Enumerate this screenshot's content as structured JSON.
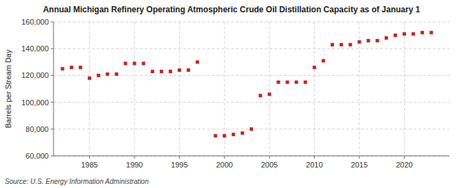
{
  "chart_data": {
    "type": "scatter",
    "title": "Annual Michigan Refinery Operating Atmospheric Crude Oil Distillation Capacity as of January 1",
    "y_label": "Barrels per Stream Day",
    "source": "Source: U.S. Energy Information Administration",
    "x": [
      1982,
      1983,
      1984,
      1985,
      1986,
      1987,
      1988,
      1989,
      1990,
      1991,
      1992,
      1993,
      1994,
      1995,
      1996,
      1997,
      1999,
      2000,
      2001,
      2002,
      2003,
      2004,
      2005,
      2006,
      2007,
      2008,
      2009,
      2010,
      2011,
      2012,
      2013,
      2014,
      2015,
      2016,
      2017,
      2018,
      2019,
      2020,
      2021,
      2022,
      2023
    ],
    "values": [
      125000,
      126000,
      126000,
      118000,
      120000,
      121000,
      121000,
      129000,
      129000,
      129000,
      123000,
      123000,
      123000,
      124000,
      124000,
      130000,
      75000,
      75000,
      76000,
      77000,
      80000,
      105000,
      106000,
      115000,
      115000,
      115000,
      115000,
      126000,
      131000,
      143000,
      143000,
      143000,
      145000,
      146000,
      146000,
      148000,
      150000,
      151000,
      151000,
      152000,
      152000
    ],
    "color": "#cc2222",
    "marker": "square",
    "xlim": [
      1981,
      2025
    ],
    "ylim": [
      60000,
      160000
    ],
    "xticks": [
      1985,
      1990,
      1995,
      2000,
      2005,
      2010,
      2015,
      2020
    ],
    "yticks": [
      {
        "value": 60000,
        "label": "60,000"
      },
      {
        "value": 80000,
        "label": "80,000"
      },
      {
        "value": 100000,
        "label": "100,000"
      },
      {
        "value": 120000,
        "label": "120,000"
      },
      {
        "value": 140000,
        "label": "140,000"
      },
      {
        "value": 160000,
        "label": "160,000"
      }
    ],
    "grid": true
  }
}
